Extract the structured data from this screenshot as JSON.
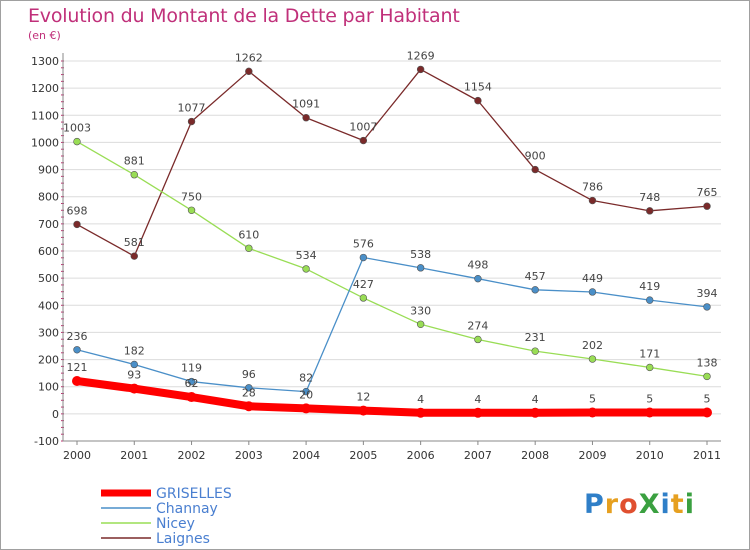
{
  "title": "Evolution du Montant de la Dette par Habitant",
  "subtitle": "(en €)",
  "logo": {
    "text": "ProXiti",
    "colors": [
      "#2f7fc8",
      "#e6a020",
      "#e05030",
      "#3aa040",
      "#2f7fc8",
      "#e6a020",
      "#3aa040"
    ]
  },
  "chart_data": {
    "type": "line",
    "title": "Evolution du Montant de la Dette par Habitant",
    "subtitle": "(en €)",
    "x": [
      "2000",
      "2001",
      "2002",
      "2003",
      "2004",
      "2005",
      "2006",
      "2007",
      "2008",
      "2009",
      "2010",
      "2011"
    ],
    "ylim": [
      -100,
      1300
    ],
    "yticks": [
      -100,
      0,
      100,
      200,
      300,
      400,
      500,
      600,
      700,
      800,
      900,
      1000,
      1100,
      1200,
      1300
    ],
    "grid": "horizontal",
    "legend_position": "bottom-left",
    "series": [
      {
        "name": "GRISELLES",
        "color": "#ff0000",
        "values": [
          121,
          93,
          62,
          28,
          20,
          12,
          4,
          4,
          4,
          5,
          5,
          5
        ]
      },
      {
        "name": "Channay",
        "color": "#4a8fc8",
        "values": [
          236,
          182,
          119,
          96,
          82,
          576,
          538,
          498,
          457,
          449,
          419,
          394
        ]
      },
      {
        "name": "Nicey",
        "color": "#99dd55",
        "values": [
          1003,
          881,
          750,
          610,
          534,
          427,
          330,
          274,
          231,
          202,
          171,
          138
        ]
      },
      {
        "name": "Laignes",
        "color": "#7a2a2a",
        "values": [
          698,
          581,
          1077,
          1262,
          1091,
          1007,
          1269,
          1154,
          900,
          786,
          748,
          765
        ]
      }
    ]
  }
}
